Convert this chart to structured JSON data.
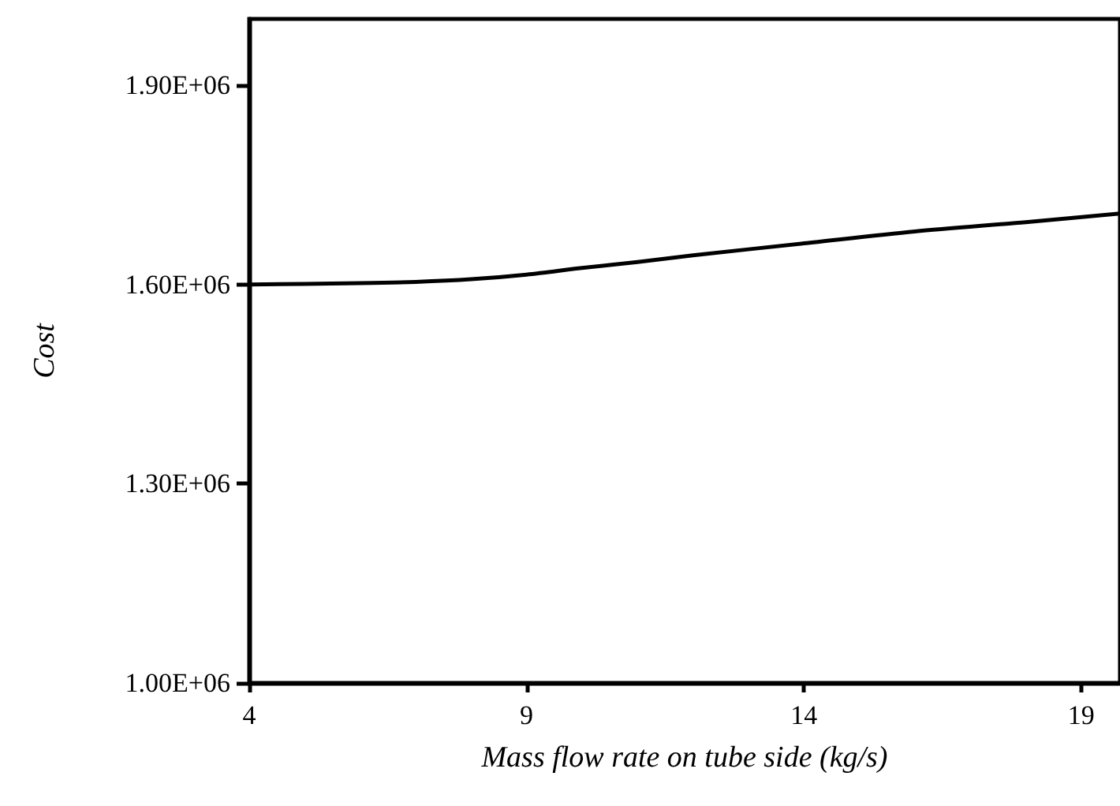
{
  "chart_data": {
    "type": "line",
    "xlabel": "Mass flow rate on tube side (kg/s)",
    "ylabel": "Cost",
    "x": [
      4,
      5,
      6,
      7,
      8,
      9,
      10,
      11,
      12,
      14,
      16,
      18,
      19.7
    ],
    "series": [
      {
        "color": "#000000",
        "values": [
          1600000,
          1601000,
          1602000,
          1604000,
          1608000,
          1615000,
          1625000,
          1634000,
          1644000,
          1662000,
          1680000,
          1694000,
          1707000
        ]
      }
    ],
    "xlim": [
      4,
      19.7
    ],
    "xticks": [
      4,
      9,
      14,
      19
    ],
    "ylim": [
      1000000,
      2000000
    ],
    "yticks": [
      {
        "value": 1000000,
        "label": "1.00E+06"
      },
      {
        "value": 1300000,
        "label": "1.30E+06"
      },
      {
        "value": 1600000,
        "label": "1.60E+06"
      },
      {
        "value": 1900000,
        "label": "1.90E+06"
      }
    ],
    "grid": false,
    "marker": "none",
    "line_style": "solid"
  }
}
